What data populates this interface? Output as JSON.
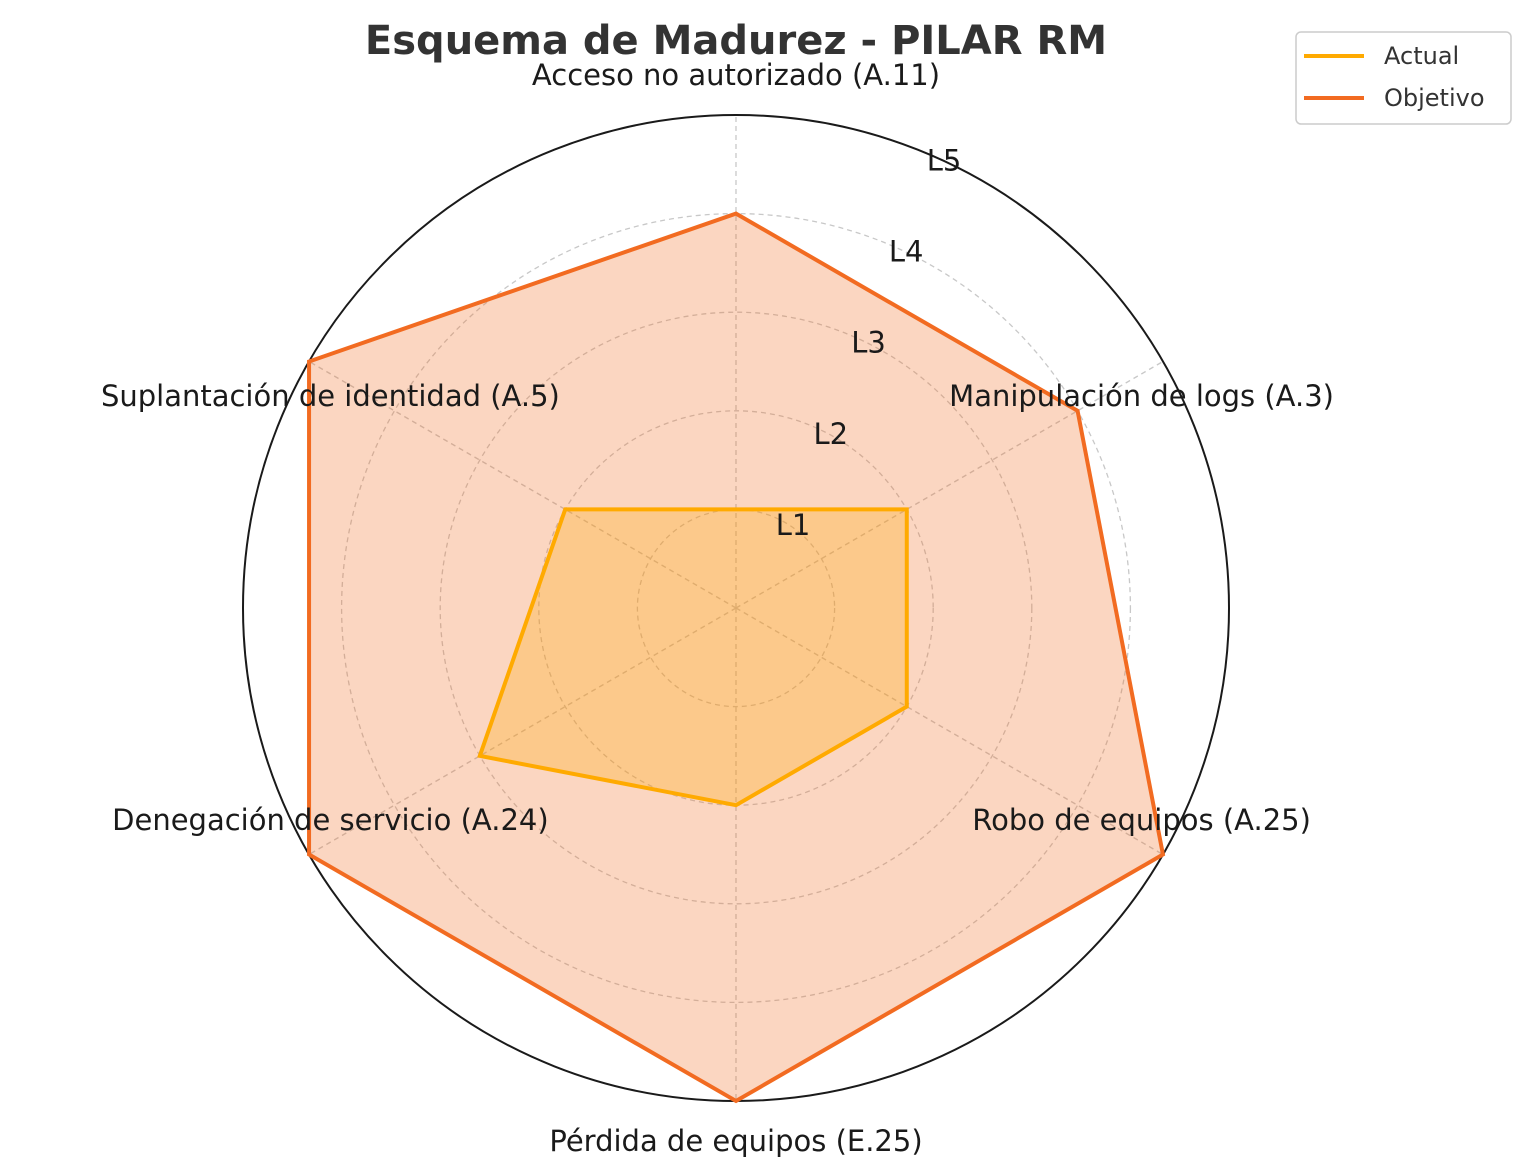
{
  "chart_data": {
    "type": "radar",
    "title": "Esquema de Madurez - PILAR RM",
    "axes": [
      "Acceso no autorizado (A.11)",
      "Manipulación de logs (A.3)",
      "Robo de equipos (A.25)",
      "Pérdida de equipos (E.25)",
      "Denegación de servicio (A.24)",
      "Suplantación de identidad (A.5)"
    ],
    "ticks": [
      "L1",
      "L2",
      "L3",
      "L4",
      "L5"
    ],
    "tick_values": [
      1,
      2,
      3,
      4,
      5
    ],
    "rlim": [
      0,
      5
    ],
    "grid": true,
    "legend_position": "top-right",
    "series": [
      {
        "name": "Actual",
        "values": [
          1,
          2,
          2,
          2,
          3,
          2
        ],
        "color": "#FFAA00"
      },
      {
        "name": "Objetivo",
        "values": [
          4,
          4,
          5,
          5,
          5,
          5
        ],
        "color": "#F26B21"
      }
    ]
  }
}
